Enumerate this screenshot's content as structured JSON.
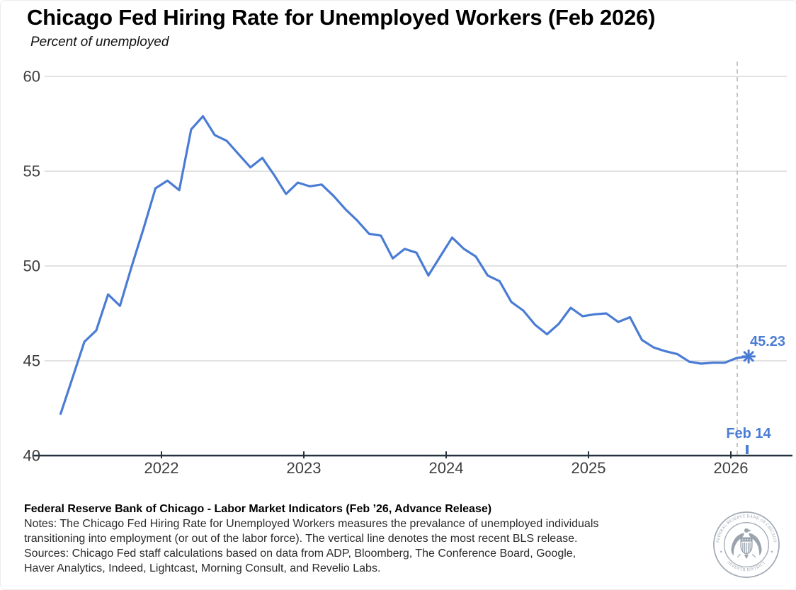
{
  "header": {
    "title": "Chicago Fed Hiring Rate for Unemployed Workers (Feb 2026)",
    "subtitle": "Percent of unemployed"
  },
  "chart_data": {
    "type": "line",
    "title": "Chicago Fed Hiring Rate for Unemployed Workers (Feb 2026)",
    "ylabel": "Percent of unemployed",
    "xlabel": "",
    "ylim": [
      40,
      60
    ],
    "grid": "horizontal",
    "legend": "none",
    "yticks": [
      "40",
      "45",
      "50",
      "55",
      "60"
    ],
    "xticks": [
      "2022",
      "2023",
      "2024",
      "2025",
      "2026"
    ],
    "colors": {
      "line": "#4a7cd4",
      "annotation": "#4a7cd4",
      "grid": "#d9d9d9",
      "axis": "#243240",
      "tick_label": "#3d3d3d",
      "dashed_line": "#b9b9b9"
    },
    "series": [
      {
        "name": "Hiring rate for unemployed workers",
        "dates": [
          "2021-04",
          "2021-05",
          "2021-06",
          "2021-07",
          "2021-08",
          "2021-09",
          "2021-10",
          "2021-11",
          "2021-12",
          "2022-01",
          "2022-02",
          "2022-03",
          "2022-04",
          "2022-05",
          "2022-06",
          "2022-07",
          "2022-08",
          "2022-09",
          "2022-10",
          "2022-11",
          "2022-12",
          "2023-01",
          "2023-02",
          "2023-03",
          "2023-04",
          "2023-05",
          "2023-06",
          "2023-07",
          "2023-08",
          "2023-09",
          "2023-10",
          "2023-11",
          "2023-12",
          "2024-01",
          "2024-02",
          "2024-03",
          "2024-04",
          "2024-05",
          "2024-06",
          "2024-07",
          "2024-08",
          "2024-09",
          "2024-10",
          "2024-11",
          "2024-12",
          "2025-01",
          "2025-02",
          "2025-03",
          "2025-04",
          "2025-05",
          "2025-06",
          "2025-07",
          "2025-08",
          "2025-09",
          "2025-10",
          "2025-11",
          "2025-12",
          "2026-01",
          "2026-02"
        ],
        "values": [
          42.2,
          44.1,
          46.0,
          46.6,
          48.5,
          47.9,
          50.0,
          52.0,
          54.1,
          54.5,
          54.0,
          57.2,
          57.9,
          56.9,
          56.6,
          55.9,
          55.2,
          55.7,
          54.8,
          53.8,
          54.4,
          54.2,
          54.3,
          53.7,
          53.0,
          52.4,
          51.7,
          51.6,
          50.4,
          50.9,
          50.7,
          49.5,
          50.5,
          51.5,
          50.9,
          50.5,
          49.5,
          49.2,
          48.1,
          47.65,
          46.9,
          46.4,
          46.95,
          47.8,
          47.35,
          47.45,
          47.5,
          47.05,
          47.3,
          46.1,
          45.7,
          45.5,
          45.35,
          44.95,
          44.85,
          44.9,
          44.9,
          45.15,
          45.23
        ]
      }
    ],
    "annotations": {
      "last_value_label": "45.23",
      "release_date_label": "Feb 14"
    }
  },
  "footer": {
    "headline": "Federal Reserve Bank of Chicago - Labor Market Indicators (Feb ’26, Advance Release)",
    "lines": [
      "Notes: The Chicago Fed Hiring Rate for Unemployed Workers measures the prevalance of unemployed individuals",
      "transitioning into employment (or out of the labor force). The vertical line denotes the most recent BLS release.",
      "Sources: Chicago Fed staff calculations based on data from ADP, Bloomberg, The Conference Board, Google,",
      "Haver Analytics, Indeed, Lightcast, Morning Consult, and Revelio Labs."
    ],
    "seal": {
      "top_text": "FEDERAL RESERVE BANK OF CHICAGO",
      "bottom_text": "SEVENTH DISTRICT"
    }
  }
}
